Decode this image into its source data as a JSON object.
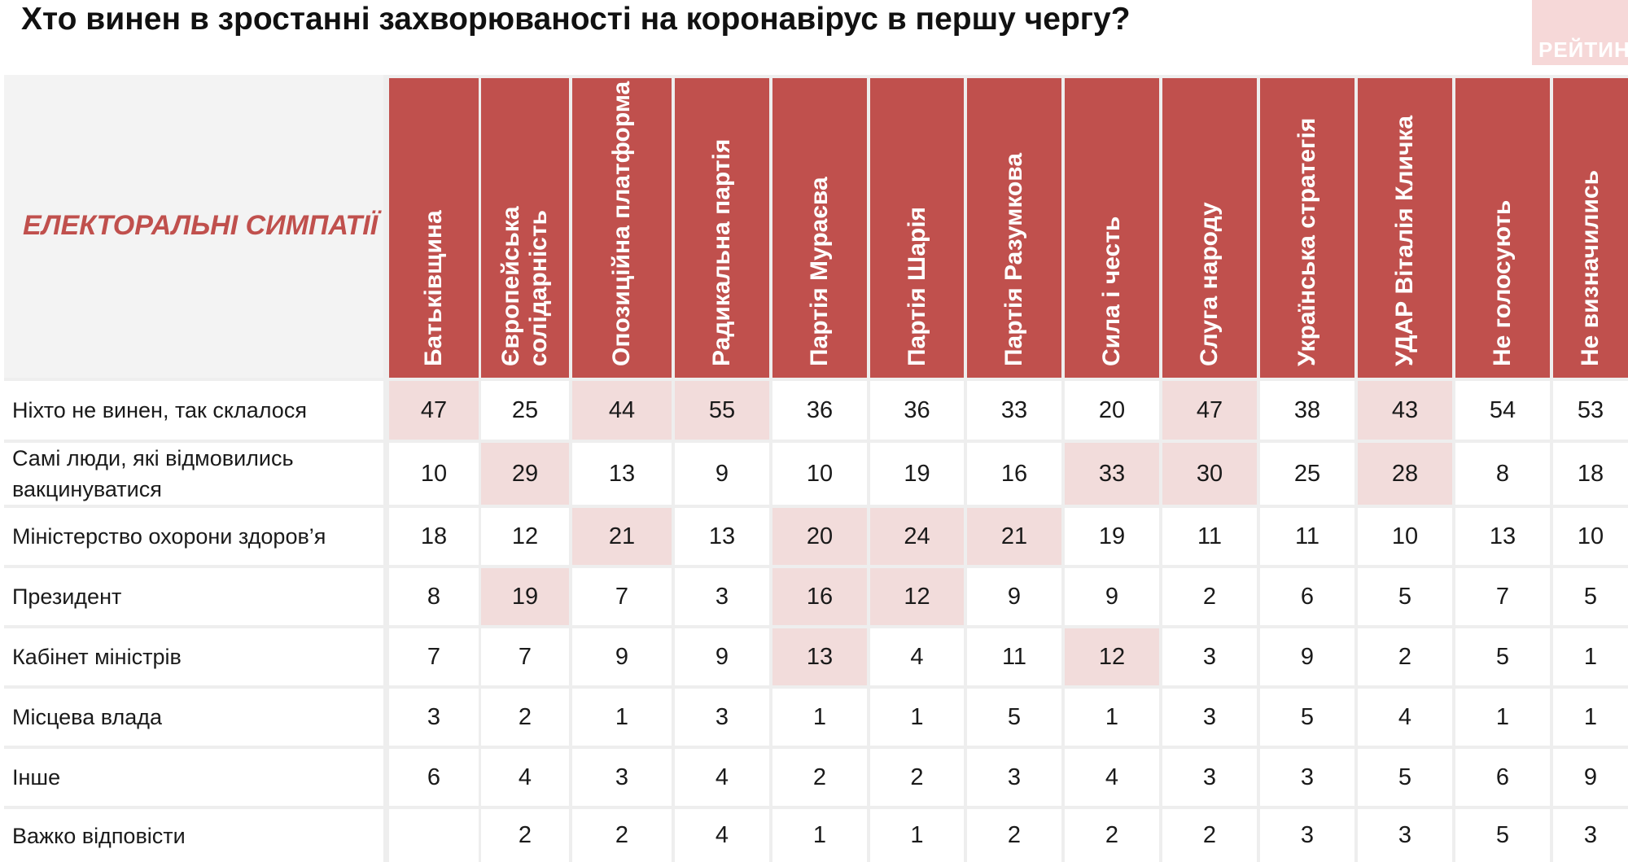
{
  "title": "Хто винен в зростанні захворюваності на коронавірус в першу чергу?",
  "logo": "РЕЙТИНГ",
  "chart_data": {
    "type": "table",
    "row_header": "ЕЛЕКТОРАЛЬНІ СИМПАТІЇ",
    "columns": [
      "Батьківщина",
      "Європейська солідарність",
      "Опозиційна платформа",
      "Радикальна партія",
      "Партія Мураєва",
      "Партія Шарія",
      "Партія Разумкова",
      "Сила і честь",
      "Слуга народу",
      "Українська стратегія",
      "УДАР Віталія Кличка",
      "Не голосують",
      "Не визначились"
    ],
    "rows": [
      {
        "label": "Ніхто не винен, так склалося",
        "values": [
          47,
          25,
          44,
          55,
          36,
          36,
          33,
          20,
          47,
          38,
          43,
          54,
          53
        ],
        "highlight": [
          0,
          2,
          3,
          8,
          10
        ]
      },
      {
        "label": "Самі люди, які відмовились вакцинуватися",
        "values": [
          10,
          29,
          13,
          9,
          10,
          19,
          16,
          33,
          30,
          25,
          28,
          8,
          18
        ],
        "highlight": [
          1,
          7,
          8,
          10
        ]
      },
      {
        "label": "Міністерство охорони здоров’я",
        "values": [
          18,
          12,
          21,
          13,
          20,
          24,
          21,
          19,
          11,
          11,
          10,
          13,
          10
        ],
        "highlight": [
          2,
          4,
          5,
          6
        ]
      },
      {
        "label": "Президент",
        "values": [
          8,
          19,
          7,
          3,
          16,
          12,
          9,
          9,
          2,
          6,
          5,
          7,
          5
        ],
        "highlight": [
          1,
          4,
          5
        ]
      },
      {
        "label": "Кабінет міністрів",
        "values": [
          7,
          7,
          9,
          9,
          13,
          4,
          11,
          12,
          3,
          9,
          2,
          5,
          1
        ],
        "highlight": [
          4,
          7
        ]
      },
      {
        "label": "Місцева влада",
        "values": [
          3,
          2,
          1,
          3,
          1,
          1,
          5,
          1,
          3,
          5,
          4,
          1,
          1
        ],
        "highlight": []
      },
      {
        "label": "Інше",
        "values": [
          6,
          4,
          3,
          4,
          2,
          2,
          3,
          4,
          3,
          3,
          5,
          6,
          9
        ],
        "highlight": []
      },
      {
        "label": "Важко відповісти",
        "values": [
          null,
          2,
          2,
          4,
          1,
          1,
          2,
          2,
          2,
          3,
          3,
          5,
          3
        ],
        "highlight": []
      }
    ],
    "colors": {
      "header": "#c0504d",
      "highlight": "#f2dcdb",
      "row_header_text": "#c0504d"
    }
  }
}
